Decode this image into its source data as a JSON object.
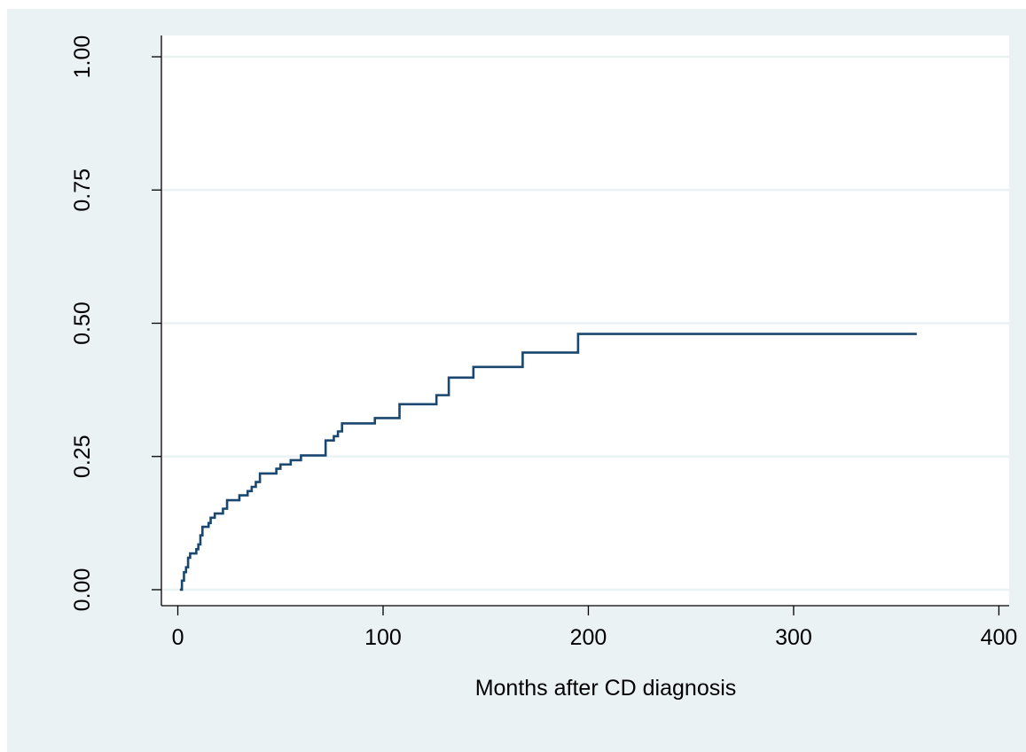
{
  "chart_data": {
    "type": "line",
    "step": true,
    "title": "",
    "xlabel": "Months after CD diagnosis",
    "ylabel": "",
    "xlim": [
      -8,
      405
    ],
    "ylim": [
      -0.03,
      1.04
    ],
    "xticks": [
      0,
      100,
      200,
      300,
      400
    ],
    "xtick_labels": [
      "0",
      "100",
      "200",
      "300",
      "400"
    ],
    "yticks": [
      0,
      0.25,
      0.5,
      0.75,
      1
    ],
    "ytick_labels": [
      "0.00",
      "0.25",
      "0.50",
      "0.75",
      "1.00"
    ],
    "grid": "horizontal",
    "legend": "none",
    "colors": {
      "background": "#eaf2f3",
      "plot_area": "#ffffff",
      "line": "#1a476f",
      "grid": "#eaf2f3"
    },
    "series": [
      {
        "x": [
          1,
          2,
          3,
          4,
          5,
          6,
          8,
          9,
          10,
          11,
          12,
          15,
          16,
          18,
          19,
          22,
          24,
          28,
          30,
          34,
          36,
          38,
          40,
          48,
          50,
          55,
          60,
          72,
          76,
          78,
          80,
          96,
          108,
          126,
          132,
          144,
          168,
          195,
          360
        ],
        "y": [
          0.0,
          0.017,
          0.033,
          0.042,
          0.06,
          0.068,
          0.068,
          0.076,
          0.085,
          0.102,
          0.118,
          0.125,
          0.135,
          0.143,
          0.143,
          0.152,
          0.168,
          0.168,
          0.177,
          0.185,
          0.193,
          0.202,
          0.218,
          0.227,
          0.235,
          0.243,
          0.252,
          0.28,
          0.288,
          0.297,
          0.312,
          0.322,
          0.348,
          0.365,
          0.398,
          0.418,
          0.445,
          0.48,
          0.48
        ]
      }
    ]
  }
}
